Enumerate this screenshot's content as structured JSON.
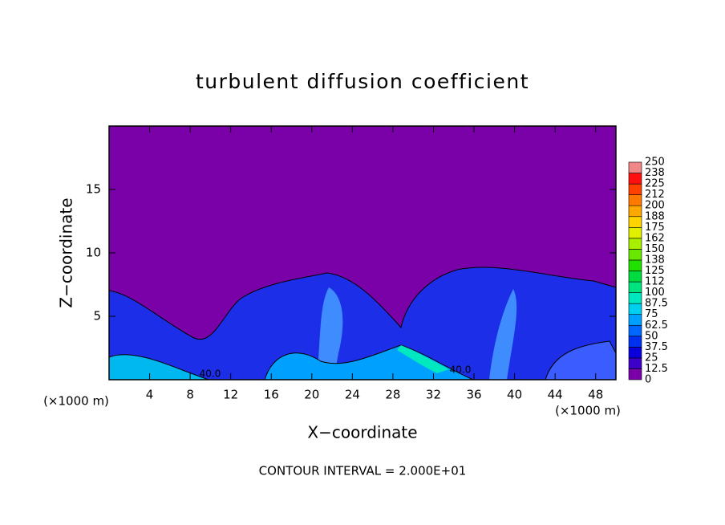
{
  "chart_data": {
    "type": "contour",
    "title": "turbulent diffusion coefficient",
    "xlabel": "X−coordinate",
    "ylabel": "Z−coordinate",
    "xunit": "(×1000 m)",
    "yunit": "(×1000 m)",
    "xlim": [
      0,
      50
    ],
    "ylim": [
      0,
      20
    ],
    "xticks": [
      4,
      8,
      12,
      16,
      20,
      24,
      28,
      32,
      36,
      40,
      44,
      48
    ],
    "yticks": [
      5,
      10,
      15
    ],
    "contour_labels": [
      "40.0",
      "40.0"
    ],
    "footnote": "CONTOUR INTERVAL = 2.000E+01",
    "colorbar": {
      "levels": [
        0,
        12.5,
        25,
        37.5,
        50,
        62.5,
        75,
        87.5,
        100,
        112,
        125,
        138,
        150,
        162,
        175,
        188,
        200,
        212,
        225,
        238,
        250
      ],
      "colors": [
        "#7a00a8",
        "#3c00c8",
        "#0a00dc",
        "#0030f0",
        "#0068ff",
        "#00a0ff",
        "#00d0f0",
        "#00e8c0",
        "#00e480",
        "#00dc40",
        "#20e000",
        "#68e800",
        "#a8f000",
        "#e0f000",
        "#ffd400",
        "#ffa800",
        "#ff7800",
        "#ff4000",
        "#ff1010",
        "#f08888"
      ]
    }
  }
}
